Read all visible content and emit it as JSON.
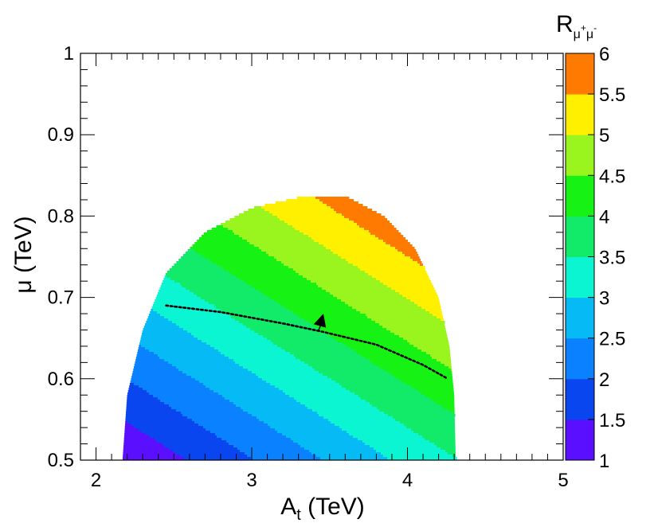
{
  "chart_data": {
    "type": "heatmap",
    "xaxis": {
      "label_main": "A",
      "label_sub": "t",
      "label_unit": " (TeV)",
      "range": [
        1.9,
        5.0
      ],
      "ticks": [
        2,
        3,
        4,
        5
      ],
      "tick_labels": [
        "2",
        "3",
        "4",
        "5"
      ]
    },
    "yaxis": {
      "label": "μ (TeV)",
      "range": [
        0.5,
        1.0
      ],
      "ticks": [
        0.5,
        0.6,
        0.7,
        0.8,
        0.9,
        1.0
      ],
      "tick_labels": [
        "0.5",
        "0.6",
        "0.7",
        "0.8",
        "0.9",
        "1"
      ]
    },
    "colorbar": {
      "title_main": "R",
      "title_sub": "μ",
      "title_sup1": "+",
      "title_sub2": "μ",
      "title_sup2": "-",
      "range": [
        1,
        6
      ],
      "levels": [
        1,
        1.5,
        2,
        2.5,
        3,
        3.5,
        4,
        4.5,
        5,
        5.5,
        6
      ],
      "tick_labels": [
        "1",
        "1.5",
        "2",
        "2.5",
        "3",
        "3.5",
        "4",
        "4.5",
        "5",
        "5.5",
        "6"
      ],
      "colors": [
        "#5a0fff",
        "#0a46f0",
        "#0a82ff",
        "#06baf5",
        "#0cf5d2",
        "#12ea6a",
        "#17f215",
        "#9af51e",
        "#fff000",
        "#ff7a00",
        "#ff0000"
      ]
    },
    "allowed_region": {
      "description_points": [
        {
          "At": 2.17,
          "mu": 0.5
        },
        {
          "At": 2.2,
          "mu": 0.58
        },
        {
          "At": 2.3,
          "mu": 0.66
        },
        {
          "At": 2.45,
          "mu": 0.73
        },
        {
          "At": 2.7,
          "mu": 0.78
        },
        {
          "At": 3.0,
          "mu": 0.81
        },
        {
          "At": 3.35,
          "mu": 0.825
        },
        {
          "At": 3.6,
          "mu": 0.825
        },
        {
          "At": 3.85,
          "mu": 0.8
        },
        {
          "At": 4.05,
          "mu": 0.76
        },
        {
          "At": 4.2,
          "mu": 0.7
        },
        {
          "At": 4.27,
          "mu": 0.64
        },
        {
          "At": 4.3,
          "mu": 0.58
        },
        {
          "At": 4.31,
          "mu": 0.5
        }
      ]
    },
    "z_model": {
      "description": "R values across the allowed region, approximately linear in At and mu",
      "samples": [
        {
          "At": 2.25,
          "mu": 0.5,
          "R": 1.25
        },
        {
          "At": 3.0,
          "mu": 0.5,
          "R": 2.05
        },
        {
          "At": 4.0,
          "mu": 0.5,
          "R": 3.1
        },
        {
          "At": 2.5,
          "mu": 0.7,
          "R": 3.0
        },
        {
          "At": 3.5,
          "mu": 0.7,
          "R": 4.45
        },
        {
          "At": 4.2,
          "mu": 0.65,
          "R": 4.6
        },
        {
          "At": 3.6,
          "mu": 0.8,
          "R": 5.8
        }
      ]
    },
    "contour_line": {
      "style": "dotted",
      "points": [
        {
          "At": 2.45,
          "mu": 0.69
        },
        {
          "At": 2.8,
          "mu": 0.682
        },
        {
          "At": 3.2,
          "mu": 0.668
        },
        {
          "At": 3.45,
          "mu": 0.658
        },
        {
          "At": 3.8,
          "mu": 0.642
        },
        {
          "At": 4.1,
          "mu": 0.617
        },
        {
          "At": 4.25,
          "mu": 0.601
        }
      ],
      "arrow": {
        "from": {
          "At": 3.43,
          "mu": 0.66
        },
        "to": {
          "At": 3.46,
          "mu": 0.68
        }
      }
    }
  }
}
